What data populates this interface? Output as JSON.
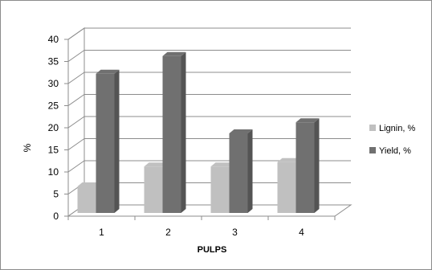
{
  "chart_data": {
    "type": "bar",
    "style": "3d-clustered-column",
    "title": "",
    "xlabel": "PULPS",
    "ylabel": "%",
    "categories": [
      "1",
      "2",
      "3",
      "4"
    ],
    "ylim": [
      0,
      40
    ],
    "yticks": [
      "0",
      "5",
      "10",
      "15",
      "20",
      "25",
      "30",
      "35",
      "40"
    ],
    "grid": true,
    "legend_position": "right",
    "series": [
      {
        "name": "Lignin, %",
        "values": [
          6,
          10.5,
          10.5,
          11.5
        ],
        "color": "#c0c0c0"
      },
      {
        "name": "Yield, %",
        "values": [
          31.5,
          35.5,
          18,
          20.5
        ],
        "color": "#707070"
      }
    ]
  }
}
